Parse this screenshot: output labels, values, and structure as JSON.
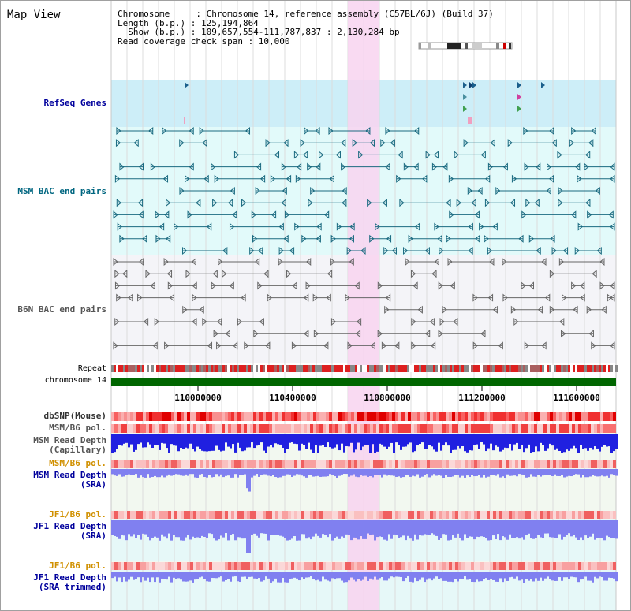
{
  "title": "Map View",
  "info": {
    "chromosome": "Chromosome     : Chromosome 14, reference assembly (C57BL/6J) (Build 37)",
    "length": "Length (b.p.) : 125,194,864",
    "show": "  Show (b.p.) : 109,657,554-111,787,837 : 2,130,284 bp",
    "span": "Read coverage check span : 10,000"
  },
  "tracks": {
    "refseq": "RefSeq Genes",
    "msm_bac": "MSM BAC end pairs",
    "b6n_bac": "B6N BAC end pairs",
    "repeat": "Repeat",
    "chromosome": "chromosome 14",
    "dbsnp": "dbSNP(Mouse)",
    "msm_b6_pol": "MSM/B6 pol.",
    "msm_depth_cap_1": "MSM Read Depth",
    "msm_depth_cap_2": "(Capillary)",
    "msm_b6_pol2": "MSM/B6 pol.",
    "msm_depth_sra_1": "MSM Read Depth",
    "msm_depth_sra_2": "(SRA)",
    "jf1_b6_pol": "JF1/B6 pol.",
    "jf1_depth_sra_1": "JF1 Read Depth",
    "jf1_depth_sra_2": "(SRA)",
    "jf1_b6_pol2": "JF1/B6 pol.",
    "jf1_depth_trim_1": "JF1 Read Depth",
    "jf1_depth_trim_2": "(SRA trimmed)"
  },
  "axis": {
    "ticks": [
      "110000000",
      "110400000",
      "110800000",
      "111200000",
      "111600000"
    ]
  },
  "colors": {
    "refseq_bg": "#cdeef8",
    "msm_bg": "#e2fafa",
    "b6n_bg": "#f4f4f8",
    "highlight": "#f8d4f0",
    "chromosome_bar": "#006600",
    "depth_blue": "#2020e0",
    "depth_light": "#8080f0",
    "label_navy": "#00009c",
    "label_teal": "#006680",
    "label_orange": "#d09000"
  }
}
